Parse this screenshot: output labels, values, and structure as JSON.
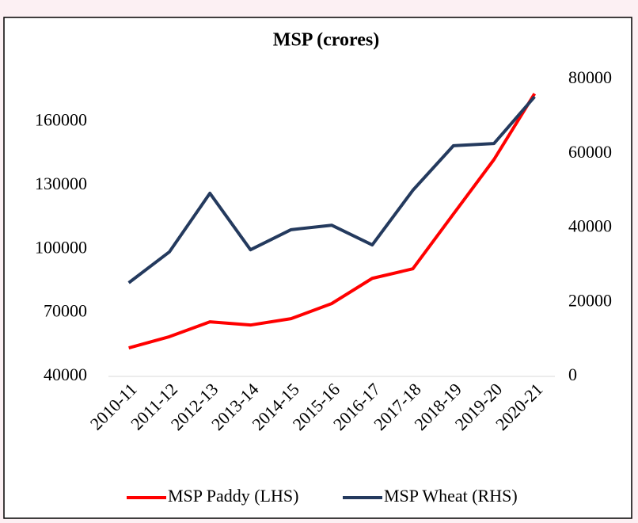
{
  "chart_data": {
    "type": "line",
    "title": "MSP (crores)",
    "categories": [
      "2010-11",
      "2011-12",
      "2012-13",
      "2013-14",
      "2014-15",
      "2015-16",
      "2016-17",
      "2017-18",
      "2018-19",
      "2019-20",
      "2020-21"
    ],
    "series": [
      {
        "name": "MSP Paddy (LHS)",
        "color": "#ff0000",
        "values": [
          53400,
          58700,
          65700,
          64200,
          67200,
          74300,
          86200,
          90700,
          116500,
          142200,
          173200
        ]
      },
      {
        "name": "MSP Wheat (RHS)",
        "color": "#243a5e",
        "axis": "y2",
        "values": [
          25200,
          33500,
          49300,
          34100,
          39500,
          40700,
          35400,
          50100,
          62100,
          62700,
          75300
        ]
      }
    ],
    "ylim": [
      40000,
      180000
    ],
    "yticks": [
      40000,
      70000,
      100000,
      130000,
      160000
    ],
    "y2lim": [
      0,
      80000
    ],
    "y2ticks": [
      0,
      20000,
      40000,
      60000,
      80000
    ],
    "legend": "bottom"
  }
}
